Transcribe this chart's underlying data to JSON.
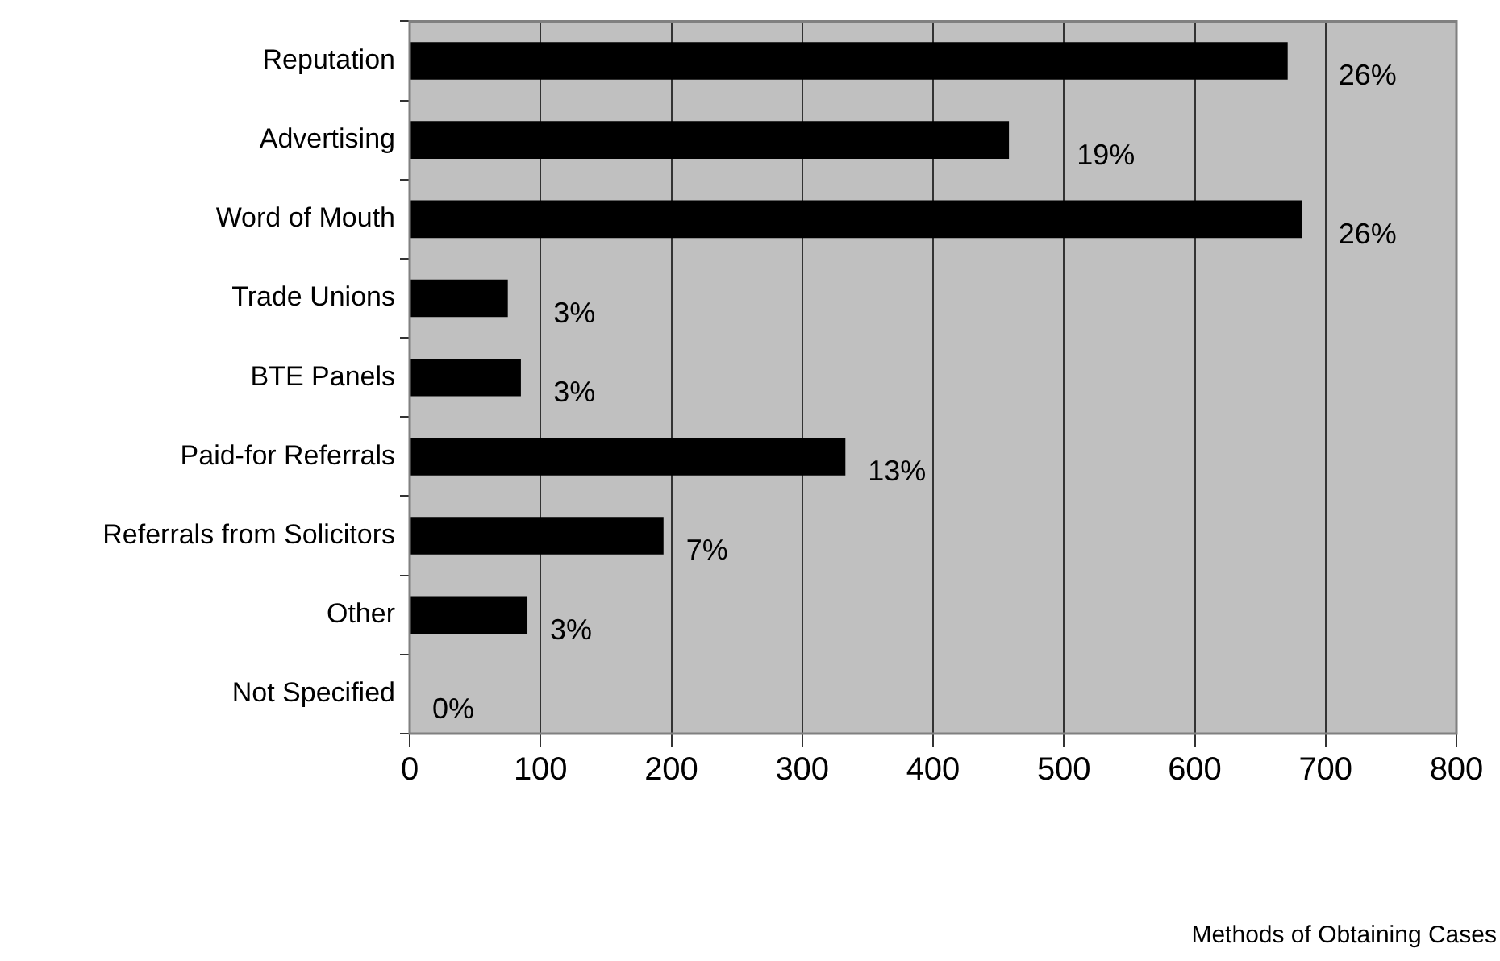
{
  "chart_data": {
    "type": "bar",
    "orientation": "horizontal",
    "categories": [
      "Reputation",
      "Advertising",
      "Word of Mouth",
      "Trade Unions",
      "BTE Panels",
      "Paid-for Referrals",
      "Referrals from Solicitors",
      "Other",
      "Not Specified"
    ],
    "values": [
      671,
      458,
      682,
      75,
      85,
      333,
      194,
      90,
      0
    ],
    "annotations": [
      {
        "text": "26%",
        "x": 671,
        "y": "Reputation"
      },
      {
        "text": "19%",
        "x": 458,
        "y": "Advertising"
      },
      {
        "text": "26%",
        "x": 682,
        "y": "Word of Mouth"
      },
      {
        "text": "3%",
        "x": 75,
        "y": "Trade Unions"
      },
      {
        "text": "3%",
        "x": 85,
        "y": "BTE Panels"
      },
      {
        "text": "13%",
        "x": 333,
        "y": "Paid-for Referrals"
      },
      {
        "text": "7%",
        "x": 194,
        "y": "Referrals from Solicitors"
      },
      {
        "text": "3%",
        "x": 90,
        "y": "Other"
      },
      {
        "text": "0%",
        "x": 0,
        "y": "Not Specified"
      },
      "Methods of Obtaining Cases"
    ],
    "color": "#000000",
    "xlim": [
      0,
      800
    ],
    "xticks": [
      0,
      100,
      200,
      300,
      400,
      500,
      600,
      700,
      800
    ],
    "grid": "x",
    "legend": false
  }
}
